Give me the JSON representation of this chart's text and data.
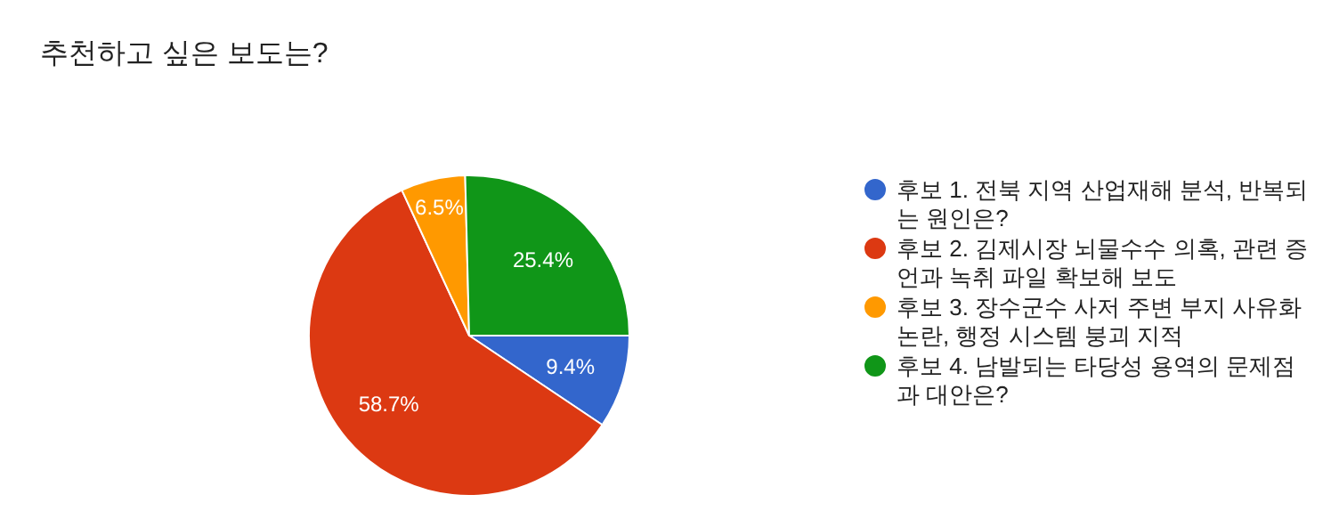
{
  "chart_data": {
    "type": "pie",
    "title": "추천하고 싶은 보도는?",
    "categories": [
      "후보 1. 전북 지역 산업재해 분석, 반복되는 원인은?",
      "후보 2. 김제시장 뇌물수수 의혹, 관련 증언과 녹취 파일 확보해 보도",
      "후보 3. 장수군수 사저 주변 부지 사유화 논란, 행정 시스템 붕괴 지적",
      "후보 4. 남발되는 타당성 용역의 문제점과 대안은?"
    ],
    "values": [
      9.4,
      58.7,
      6.5,
      25.4
    ],
    "colors": [
      "#3366cc",
      "#dc3912",
      "#ff9900",
      "#109618"
    ],
    "value_labels": [
      "9.4%",
      "58.7%",
      "6.5%",
      "25.4%"
    ],
    "legend": "right"
  }
}
